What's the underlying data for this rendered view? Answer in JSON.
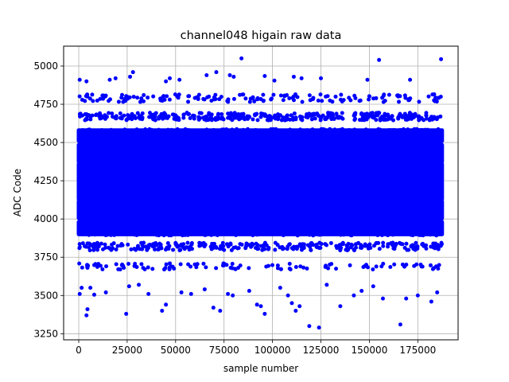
{
  "chart_data": {
    "type": "scatter",
    "title": "channel048 higain raw data",
    "xlabel": "sample number",
    "ylabel": "ADC Code",
    "xlim": [
      -7800,
      195800
    ],
    "ylim": [
      3210,
      5130
    ],
    "x_ticks": [
      0,
      25000,
      50000,
      75000,
      100000,
      125000,
      150000,
      175000
    ],
    "y_ticks": [
      3250,
      3500,
      3750,
      4000,
      4250,
      4500,
      4750,
      5000
    ],
    "grid": true,
    "marker_color": "#0000ff",
    "x_range": [
      0,
      187500
    ],
    "dense_bands": [
      {
        "center": 4060,
        "halfwidth": 55
      },
      {
        "center": 4185,
        "halfwidth": 55
      },
      {
        "center": 4305,
        "halfwidth": 55
      },
      {
        "center": 4430,
        "halfwidth": 55
      },
      {
        "center": 4545,
        "halfwidth": 35
      },
      {
        "center": 3940,
        "halfwidth": 40
      }
    ],
    "sparse_bands": [
      {
        "center": 4670,
        "halfwidth": 25,
        "count": 380
      },
      {
        "center": 3820,
        "halfwidth": 25,
        "count": 300
      },
      {
        "center": 4790,
        "halfwidth": 25,
        "count": 160
      },
      {
        "center": 3690,
        "halfwidth": 20,
        "count": 110
      }
    ],
    "outliers": [
      {
        "x": 500,
        "y": 4910
      },
      {
        "x": 4000,
        "y": 4900
      },
      {
        "x": 16000,
        "y": 4910
      },
      {
        "x": 19000,
        "y": 4920
      },
      {
        "x": 26500,
        "y": 4930
      },
      {
        "x": 28000,
        "y": 4960
      },
      {
        "x": 45000,
        "y": 4900
      },
      {
        "x": 47000,
        "y": 4920
      },
      {
        "x": 52000,
        "y": 4910
      },
      {
        "x": 66000,
        "y": 4940
      },
      {
        "x": 71000,
        "y": 4960
      },
      {
        "x": 78000,
        "y": 4940
      },
      {
        "x": 80000,
        "y": 4930
      },
      {
        "x": 84000,
        "y": 5050
      },
      {
        "x": 96000,
        "y": 4935
      },
      {
        "x": 101000,
        "y": 4905
      },
      {
        "x": 111000,
        "y": 4930
      },
      {
        "x": 115000,
        "y": 4920
      },
      {
        "x": 125000,
        "y": 4920
      },
      {
        "x": 149000,
        "y": 4910
      },
      {
        "x": 155000,
        "y": 5040
      },
      {
        "x": 171000,
        "y": 4910
      },
      {
        "x": 187000,
        "y": 5045
      },
      {
        "x": 500,
        "y": 3510
      },
      {
        "x": 1500,
        "y": 3550
      },
      {
        "x": 4000,
        "y": 3370
      },
      {
        "x": 4500,
        "y": 3410
      },
      {
        "x": 6000,
        "y": 3550
      },
      {
        "x": 8000,
        "y": 3505
      },
      {
        "x": 14000,
        "y": 3520
      },
      {
        "x": 24500,
        "y": 3380
      },
      {
        "x": 26000,
        "y": 3560
      },
      {
        "x": 31000,
        "y": 3570
      },
      {
        "x": 36000,
        "y": 3510
      },
      {
        "x": 43000,
        "y": 3400
      },
      {
        "x": 45000,
        "y": 3440
      },
      {
        "x": 53000,
        "y": 3520
      },
      {
        "x": 58000,
        "y": 3510
      },
      {
        "x": 65000,
        "y": 3540
      },
      {
        "x": 69500,
        "y": 3420
      },
      {
        "x": 73000,
        "y": 3400
      },
      {
        "x": 77000,
        "y": 3510
      },
      {
        "x": 79500,
        "y": 3500
      },
      {
        "x": 88000,
        "y": 3530
      },
      {
        "x": 92000,
        "y": 3440
      },
      {
        "x": 94000,
        "y": 3430
      },
      {
        "x": 96000,
        "y": 3380
      },
      {
        "x": 104000,
        "y": 3550
      },
      {
        "x": 108000,
        "y": 3500
      },
      {
        "x": 110000,
        "y": 3450
      },
      {
        "x": 112000,
        "y": 3400
      },
      {
        "x": 114000,
        "y": 3430
      },
      {
        "x": 119000,
        "y": 3300
      },
      {
        "x": 124000,
        "y": 3290
      },
      {
        "x": 128000,
        "y": 3570
      },
      {
        "x": 135000,
        "y": 3430
      },
      {
        "x": 142000,
        "y": 3500
      },
      {
        "x": 146000,
        "y": 3530
      },
      {
        "x": 152000,
        "y": 3560
      },
      {
        "x": 157000,
        "y": 3480
      },
      {
        "x": 166000,
        "y": 3310
      },
      {
        "x": 169000,
        "y": 3480
      },
      {
        "x": 175000,
        "y": 3500
      },
      {
        "x": 182000,
        "y": 3460
      },
      {
        "x": 185000,
        "y": 3520
      }
    ]
  }
}
